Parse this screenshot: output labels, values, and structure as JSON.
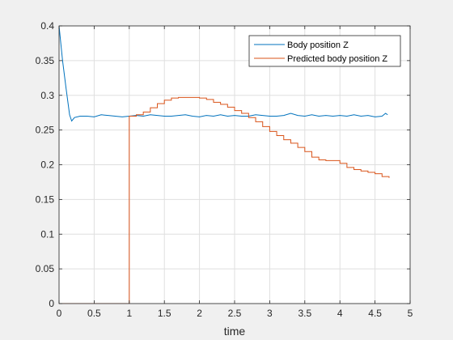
{
  "chart_data": {
    "type": "line",
    "xlabel": "time",
    "ylabel": "",
    "title": "",
    "xlim": [
      0,
      5
    ],
    "ylim": [
      0,
      0.4
    ],
    "xticks": [
      "0",
      "0.5",
      "1",
      "1.5",
      "2",
      "2.5",
      "3",
      "3.5",
      "4",
      "4.5",
      "5"
    ],
    "yticks": [
      "0",
      "0.05",
      "0.1",
      "0.15",
      "0.2",
      "0.25",
      "0.3",
      "0.35",
      "0.4"
    ],
    "grid": true,
    "legend_position": "top-right",
    "series": [
      {
        "name": "Body position Z",
        "color": "#0072bd",
        "step": false,
        "x": [
          0,
          0.05,
          0.1,
          0.15,
          0.18,
          0.22,
          0.3,
          0.4,
          0.5,
          0.6,
          0.7,
          0.8,
          0.9,
          1.0,
          1.1,
          1.2,
          1.3,
          1.4,
          1.5,
          1.6,
          1.7,
          1.8,
          1.9,
          2.0,
          2.1,
          2.2,
          2.3,
          2.4,
          2.5,
          2.6,
          2.7,
          2.8,
          2.9,
          3.0,
          3.1,
          3.2,
          3.3,
          3.4,
          3.5,
          3.6,
          3.7,
          3.8,
          3.9,
          4.0,
          4.1,
          4.2,
          4.3,
          4.4,
          4.5,
          4.6,
          4.65,
          4.68
        ],
        "y": [
          0.4,
          0.35,
          0.31,
          0.272,
          0.263,
          0.268,
          0.27,
          0.27,
          0.269,
          0.272,
          0.271,
          0.27,
          0.269,
          0.27,
          0.271,
          0.27,
          0.272,
          0.271,
          0.27,
          0.27,
          0.271,
          0.272,
          0.27,
          0.269,
          0.271,
          0.27,
          0.272,
          0.27,
          0.271,
          0.27,
          0.27,
          0.272,
          0.271,
          0.27,
          0.27,
          0.271,
          0.274,
          0.271,
          0.27,
          0.272,
          0.27,
          0.271,
          0.27,
          0.271,
          0.27,
          0.272,
          0.27,
          0.271,
          0.269,
          0.27,
          0.274,
          0.272
        ]
      },
      {
        "name": "Predicted body position Z",
        "color": "#d95319",
        "step": true,
        "x": [
          0,
          1.0,
          1.0,
          1.1,
          1.2,
          1.3,
          1.4,
          1.5,
          1.6,
          1.7,
          1.8,
          1.9,
          2.0,
          2.1,
          2.2,
          2.3,
          2.4,
          2.5,
          2.6,
          2.7,
          2.8,
          2.9,
          3.0,
          3.1,
          3.2,
          3.3,
          3.4,
          3.5,
          3.6,
          3.7,
          3.8,
          3.9,
          4.0,
          4.1,
          4.2,
          4.3,
          4.4,
          4.5,
          4.6,
          4.7
        ],
        "y": [
          0,
          0,
          0.27,
          0.272,
          0.276,
          0.282,
          0.288,
          0.293,
          0.296,
          0.297,
          0.297,
          0.297,
          0.296,
          0.294,
          0.29,
          0.287,
          0.283,
          0.278,
          0.274,
          0.268,
          0.262,
          0.255,
          0.248,
          0.242,
          0.236,
          0.231,
          0.225,
          0.219,
          0.211,
          0.207,
          0.206,
          0.206,
          0.202,
          0.196,
          0.193,
          0.191,
          0.189,
          0.187,
          0.183,
          0.181
        ]
      }
    ]
  }
}
